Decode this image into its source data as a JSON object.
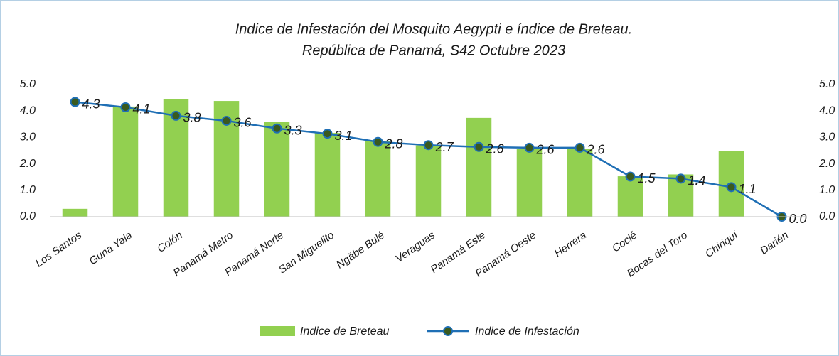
{
  "chart_data": {
    "type": "bar_line",
    "title": [
      "Indice de Infestación del Mosquito Aegypti e índice de Breteau.",
      "República de Panamá, S42 Octubre 2023"
    ],
    "categories": [
      "Los Santos",
      "Guna Yala",
      "Colón",
      "Panamá Metro",
      "Panamá Norte",
      "San Miguelito",
      "Ngäbe Bulé",
      "Veraguas",
      "Panamá Este",
      "Panamá Oeste",
      "Herrera",
      "Coclé",
      "Bocas del Toro",
      "Chiriquí",
      "Darién"
    ],
    "series": [
      {
        "name": "Indice de Breteau",
        "type": "bar",
        "color": "#92d050",
        "values": [
          0.3,
          4.17,
          4.44,
          4.38,
          3.6,
          3.17,
          2.85,
          2.7,
          3.74,
          2.58,
          2.58,
          1.53,
          1.6,
          2.5,
          0
        ]
      },
      {
        "name": "Indice de Infestación",
        "type": "line",
        "axis": "y2",
        "color": "#1f6fb5",
        "marker_color": "#3a5a1e",
        "values": [
          4.34,
          4.14,
          3.82,
          3.63,
          3.34,
          3.14,
          2.83,
          2.71,
          2.64,
          2.61,
          2.61,
          1.52,
          1.44,
          1.12,
          0
        ],
        "value_labels": [
          "4.3",
          "4.1",
          "3.8",
          "3.6",
          "3.3",
          "3.1",
          "2.8",
          "2.7",
          "2.6",
          "2.6",
          "2.6",
          "1.5",
          "1.4",
          "1.1",
          "0.0"
        ]
      }
    ],
    "ylim": [
      0,
      5
    ],
    "yticks": [
      {
        "value": 0,
        "label": "0.0"
      },
      {
        "value": 1,
        "label": "1.0"
      },
      {
        "value": 2,
        "label": "2.0"
      },
      {
        "value": 3,
        "label": "3.0"
      },
      {
        "value": 4,
        "label": "4.0"
      },
      {
        "value": 5,
        "label": "5.0"
      }
    ],
    "y2lim": [
      0,
      5
    ],
    "y2ticks": [
      {
        "value": 0,
        "label": "0.0"
      },
      {
        "value": 1,
        "label": "1.0"
      },
      {
        "value": 2,
        "label": "2.0"
      },
      {
        "value": 3,
        "label": "3.0"
      },
      {
        "value": 4,
        "label": "4.0"
      },
      {
        "value": 5,
        "label": "5.0"
      }
    ],
    "grid": false,
    "legend": "bottom"
  }
}
